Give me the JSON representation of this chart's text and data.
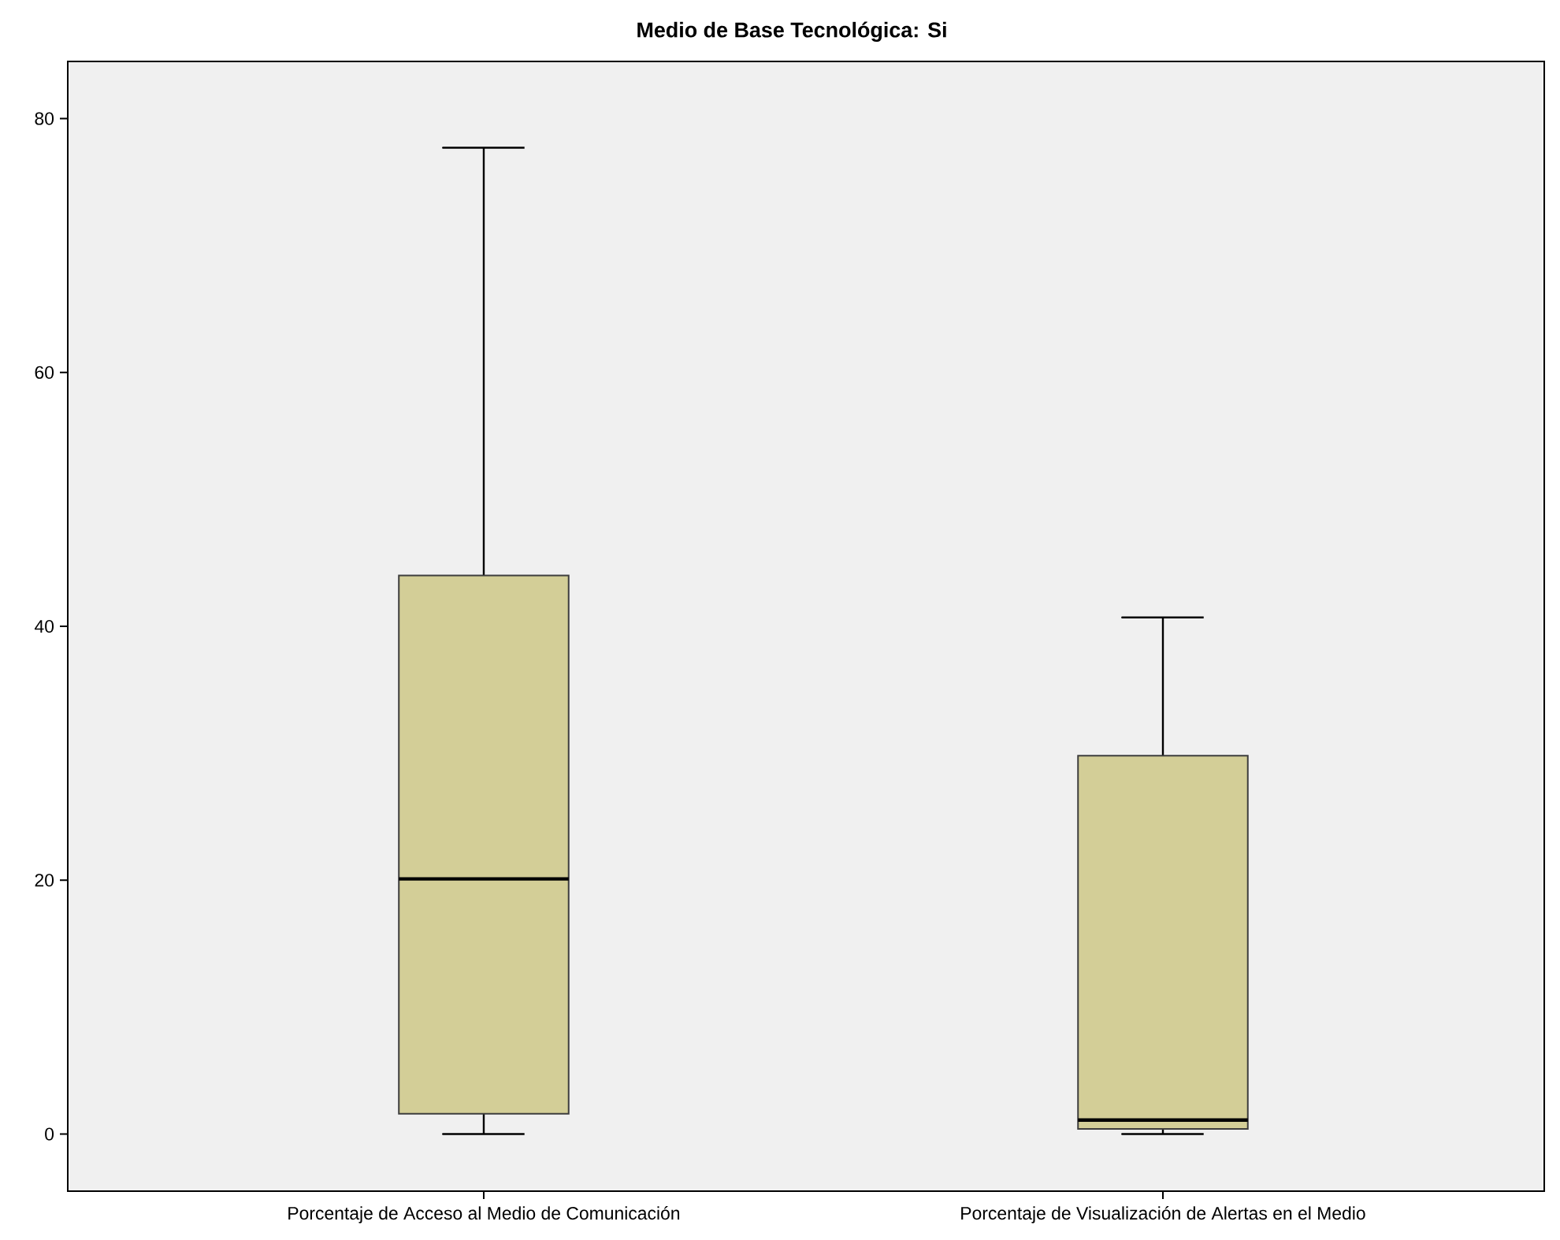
{
  "chart_data": {
    "type": "box",
    "title": "Medio de Base Tecnológica: Si",
    "categories": [
      "Porcentaje de Acceso al Medio de Comunicación",
      "Porcentaje de Visualización de Alertas en el Medio"
    ],
    "boxes": [
      {
        "low": 0,
        "q1": 1.6,
        "median": 20.1,
        "q3": 44.0,
        "high": 77.7
      },
      {
        "low": 0,
        "q1": 0.4,
        "median": 1.1,
        "q3": 29.8,
        "high": 40.7
      }
    ],
    "color": "#d3ce97",
    "ylim": [
      -4.5,
      84.5
    ],
    "yticks": [
      0,
      20,
      40,
      60,
      80
    ]
  }
}
